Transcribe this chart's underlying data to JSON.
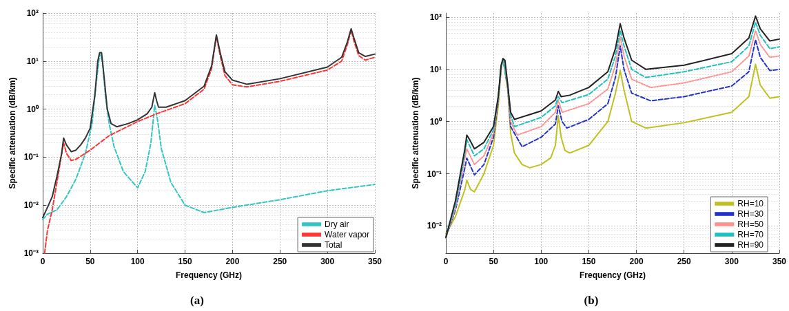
{
  "chart_data": [
    {
      "type": "line",
      "title": "(a)",
      "xlabel": "Frequency (GHz)",
      "ylabel": "Specific attenuation (dB/km)",
      "log": "y",
      "grid": true,
      "legend": "bottom right",
      "marker": "none",
      "xlim": [
        0,
        350
      ],
      "xticks": [
        0,
        50,
        100,
        150,
        200,
        250,
        300,
        350
      ],
      "ylim": [
        0.001,
        100
      ],
      "yticks": [
        {
          "value": 0.001,
          "label": "10⁻³"
        },
        {
          "value": 0.01,
          "label": "10⁻²"
        },
        {
          "value": 0.1,
          "label": "10⁻¹"
        },
        {
          "value": 1,
          "label": "10⁰"
        },
        {
          "value": 10,
          "label": "10¹"
        },
        {
          "value": 100,
          "label": "10²"
        }
      ],
      "series": [
        {
          "name": "Dry air",
          "color": "#33c4c4",
          "line_style": "dashed",
          "x": [
            0,
            5,
            15,
            25,
            35,
            45,
            52,
            56,
            60,
            63,
            66,
            70,
            75,
            85,
            100,
            108,
            114,
            118,
            121,
            125,
            135,
            150,
            170,
            200,
            250,
            300,
            350
          ],
          "values": [
            0.005,
            0.0065,
            0.008,
            0.015,
            0.035,
            0.12,
            0.5,
            3,
            14,
            10,
            2,
            0.5,
            0.17,
            0.05,
            0.023,
            0.05,
            0.2,
            1.2,
            0.6,
            0.15,
            0.03,
            0.01,
            0.007,
            0.009,
            0.013,
            0.02,
            0.027
          ]
        },
        {
          "name": "Water vapor",
          "color": "#ff3333",
          "line_style": "dashed",
          "x": [
            2,
            5,
            10,
            15,
            20,
            22,
            25,
            30,
            35,
            50,
            70,
            100,
            120,
            150,
            170,
            178,
            183,
            187,
            192,
            200,
            215,
            250,
            300,
            315,
            321,
            325,
            328,
            333,
            340,
            350
          ],
          "values": [
            0.001,
            0.003,
            0.008,
            0.03,
            0.12,
            0.2,
            0.12,
            0.085,
            0.09,
            0.14,
            0.28,
            0.55,
            0.8,
            1.3,
            2.6,
            7,
            33,
            13,
            5,
            3.2,
            2.9,
            3.8,
            6.5,
            10,
            22,
            44,
            26,
            13,
            10.5,
            12
          ]
        },
        {
          "name": "Total",
          "color": "#333333",
          "line_style": "solid",
          "x": [
            0,
            5,
            10,
            15,
            20,
            22,
            25,
            30,
            35,
            40,
            45,
            50,
            55,
            58,
            60,
            62,
            65,
            68,
            72,
            78,
            90,
            100,
            110,
            115,
            118,
            120,
            122,
            130,
            150,
            170,
            178,
            183,
            187,
            192,
            200,
            215,
            250,
            300,
            315,
            321,
            325,
            328,
            333,
            340,
            350
          ],
          "values": [
            0.0055,
            0.009,
            0.015,
            0.04,
            0.12,
            0.25,
            0.18,
            0.13,
            0.14,
            0.18,
            0.25,
            0.4,
            2,
            10,
            15,
            15,
            4,
            1,
            0.5,
            0.43,
            0.5,
            0.6,
            0.8,
            1.1,
            2.2,
            1.5,
            1.1,
            1.1,
            1.5,
            3,
            8,
            35,
            15,
            6,
            4,
            3.3,
            4.3,
            7.5,
            12,
            25,
            47,
            30,
            15,
            12.5,
            14
          ]
        }
      ]
    },
    {
      "type": "line",
      "title": "(b)",
      "xlabel": "Frequency (GHz)",
      "ylabel": "Specific attenuation (dB/km)",
      "log": "y",
      "grid": true,
      "legend": "bottom right",
      "marker": "none",
      "xlim": [
        0,
        350
      ],
      "xticks": [
        0,
        50,
        100,
        150,
        200,
        250,
        300,
        350
      ],
      "ylim": [
        0.003,
        120
      ],
      "yticks": [
        {
          "value": 0.01,
          "label": "10⁻²"
        },
        {
          "value": 0.1,
          "label": "10⁻¹"
        },
        {
          "value": 1,
          "label": "10⁰"
        },
        {
          "value": 10,
          "label": "10¹"
        },
        {
          "value": 100,
          "label": "10²"
        }
      ],
      "series": [
        {
          "name": "RH=10",
          "color": "#c0c020",
          "line_style": "solid",
          "x": [
            0,
            10,
            20,
            22,
            26,
            30,
            40,
            50,
            55,
            58,
            60,
            65,
            68,
            72,
            80,
            88,
            100,
            110,
            115,
            118,
            121,
            125,
            130,
            150,
            170,
            178,
            183,
            187,
            195,
            210,
            250,
            300,
            318,
            325,
            330,
            340,
            350
          ],
          "values": [
            0.007,
            0.015,
            0.05,
            0.075,
            0.05,
            0.045,
            0.1,
            0.35,
            2,
            10,
            16,
            4,
            0.6,
            0.25,
            0.15,
            0.13,
            0.15,
            0.2,
            0.35,
            1.3,
            0.5,
            0.28,
            0.25,
            0.35,
            1,
            3.5,
            9.5,
            4,
            1,
            0.75,
            0.95,
            1.5,
            3,
            12.5,
            5,
            2.8,
            3
          ]
        },
        {
          "name": "RH=30",
          "color": "#2233cc",
          "line_style": "dashed",
          "x": [
            0,
            10,
            20,
            22,
            30,
            40,
            50,
            55,
            58,
            60,
            65,
            68,
            80,
            100,
            115,
            118,
            122,
            127,
            150,
            170,
            178,
            183,
            187,
            195,
            215,
            250,
            300,
            318,
            325,
            330,
            340,
            350
          ],
          "values": [
            0.006,
            0.02,
            0.13,
            0.2,
            0.095,
            0.15,
            0.5,
            2.5,
            11,
            16,
            4.5,
            0.8,
            0.33,
            0.5,
            0.9,
            2,
            1,
            0.75,
            1.1,
            2.2,
            7,
            28,
            10,
            3.5,
            2.5,
            3,
            4.8,
            9,
            37,
            17,
            9.5,
            10
          ]
        },
        {
          "name": "RH=50",
          "color": "#ff9090",
          "line_style": "dotted",
          "x": [
            0,
            10,
            20,
            22,
            30,
            40,
            50,
            55,
            58,
            60,
            65,
            68,
            75,
            100,
            115,
            118,
            122,
            150,
            170,
            178,
            183,
            187,
            195,
            215,
            250,
            300,
            318,
            325,
            330,
            340,
            350
          ],
          "values": [
            0.006,
            0.022,
            0.2,
            0.3,
            0.15,
            0.22,
            0.6,
            2.7,
            11,
            16,
            4.7,
            1,
            0.55,
            0.8,
            1.5,
            2.6,
            1.5,
            2.2,
            4.2,
            12,
            42,
            18,
            6.5,
            4.5,
            5.5,
            9,
            18,
            55,
            30,
            17,
            18
          ]
        },
        {
          "name": "RH=70",
          "color": "#20c0c0",
          "line_style": "dashed",
          "x": [
            0,
            10,
            20,
            22,
            30,
            40,
            50,
            55,
            58,
            60,
            65,
            68,
            72,
            100,
            115,
            118,
            122,
            150,
            170,
            178,
            183,
            187,
            195,
            210,
            250,
            300,
            318,
            325,
            330,
            340,
            350
          ],
          "values": [
            0.006,
            0.025,
            0.25,
            0.45,
            0.22,
            0.3,
            0.7,
            3,
            11,
            16,
            5,
            1.3,
            0.8,
            1.2,
            2,
            3,
            2.3,
            3.3,
            6.5,
            18,
            55,
            28,
            10,
            7,
            9,
            14,
            28,
            80,
            45,
            25,
            27
          ]
        },
        {
          "name": "RH=90",
          "color": "#222222",
          "line_style": "solid",
          "x": [
            0,
            10,
            20,
            22,
            25,
            30,
            40,
            50,
            55,
            58,
            60,
            62,
            65,
            68,
            72,
            100,
            115,
            118,
            121,
            130,
            150,
            170,
            178,
            183,
            187,
            195,
            210,
            250,
            300,
            318,
            325,
            330,
            340,
            350
          ],
          "values": [
            0.006,
            0.03,
            0.3,
            0.55,
            0.45,
            0.3,
            0.4,
            0.8,
            3,
            12,
            16,
            15,
            5,
            1.5,
            1.1,
            1.6,
            2.6,
            3.8,
            3,
            3.2,
            4.5,
            9,
            25,
            75,
            40,
            15,
            10,
            12,
            20,
            40,
            105,
            60,
            35,
            38
          ]
        }
      ]
    }
  ]
}
